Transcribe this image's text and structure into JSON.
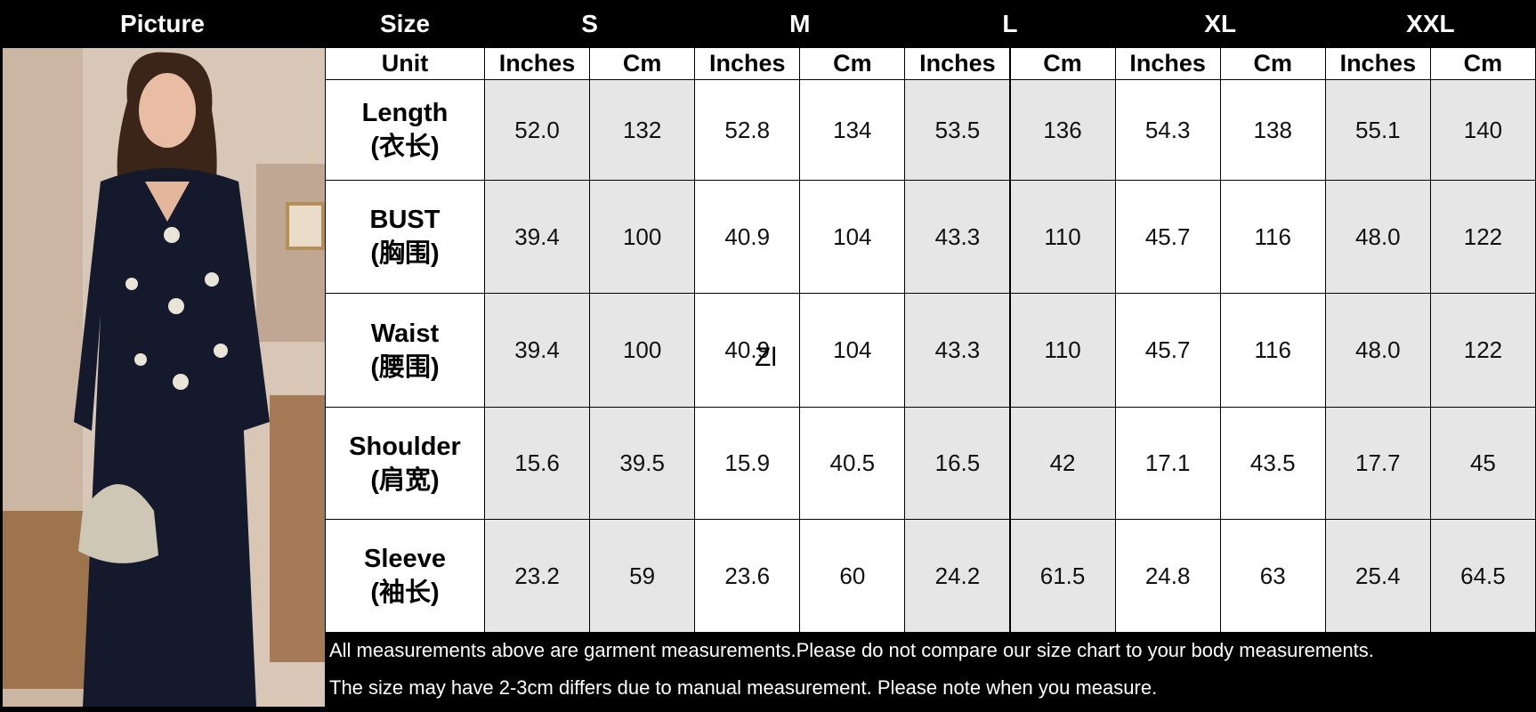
{
  "header": {
    "picture": "Picture",
    "size": "Size",
    "sizes": [
      "S",
      "M",
      "L",
      "XL",
      "XXL"
    ]
  },
  "unit_row": {
    "label": "Unit",
    "units": [
      "Inches",
      "Cm",
      "Inches",
      "Cm",
      "Inches",
      "Cm",
      "Inches",
      "Cm",
      "Inches",
      "Cm"
    ]
  },
  "rows": [
    {
      "label": "Length",
      "label_cn": "(衣长)",
      "values": [
        "52.0",
        "132",
        "52.8",
        "134",
        "53.5",
        "136",
        "54.3",
        "138",
        "55.1",
        "140"
      ]
    },
    {
      "label": "BUST",
      "label_cn": "(胸围)",
      "values": [
        "39.4",
        "100",
        "40.9",
        "104",
        "43.3",
        "110",
        "45.7",
        "116",
        "48.0",
        "122"
      ]
    },
    {
      "label": "Waist",
      "label_cn": "(腰围)",
      "values": [
        "39.4",
        "100",
        "40.9",
        "104",
        "43.3",
        "110",
        "45.7",
        "116",
        "48.0",
        "122"
      ]
    },
    {
      "label": "Shoulder",
      "label_cn": "(肩宽)",
      "values": [
        "15.6",
        "39.5",
        "15.9",
        "40.5",
        "16.5",
        "42",
        "17.1",
        "43.5",
        "17.7",
        "45"
      ]
    },
    {
      "label": "Sleeve",
      "label_cn": "(袖长)",
      "values": [
        "23.2",
        "59",
        "23.6",
        "60",
        "24.2",
        "61.5",
        "24.8",
        "63",
        "25.4",
        "64.5"
      ]
    }
  ],
  "overlay_text": "Zl",
  "notes": [
    "All measurements above are garment measurements.Please do not compare our size chart to your body measurements.",
    "The size may have 2-3cm differs due to manual measurement. Please note when you measure."
  ]
}
